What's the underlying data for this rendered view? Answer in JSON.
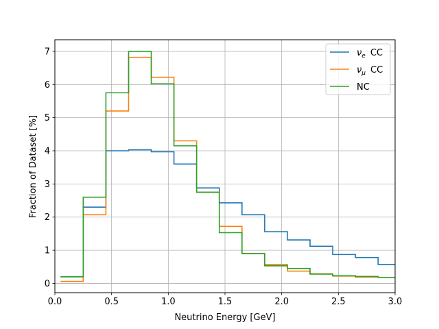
{
  "chart_data": {
    "type": "line",
    "step": true,
    "xlabel": "Neutrino Energy [GeV]",
    "ylabel": "Fraction of Dataset [%]",
    "xlim": [
      0.0,
      3.0
    ],
    "ylim": [
      -0.28,
      7.35
    ],
    "xticks": [
      0.0,
      0.5,
      1.0,
      1.5,
      2.0,
      2.5,
      3.0
    ],
    "xtick_labels": [
      "0.0",
      "0.5",
      "1.0",
      "1.5",
      "2.0",
      "2.5",
      "3.0"
    ],
    "yticks": [
      0,
      1,
      2,
      3,
      4,
      5,
      6,
      7
    ],
    "ytick_labels": [
      "0",
      "1",
      "2",
      "3",
      "4",
      "5",
      "6",
      "7"
    ],
    "grid": true,
    "legend_position": "top-right",
    "bin_edges": [
      0.05,
      0.25,
      0.45,
      0.65,
      0.85,
      1.05,
      1.25,
      1.45,
      1.65,
      1.85,
      2.05,
      2.25,
      2.45,
      2.65,
      2.85,
      3.05
    ],
    "series": [
      {
        "name": "CC",
        "subscript": "e",
        "color": "#1f77b4",
        "values": [
          0.2,
          2.3,
          4.0,
          4.03,
          3.97,
          3.6,
          2.88,
          2.43,
          2.07,
          1.56,
          1.31,
          1.12,
          0.87,
          0.78,
          0.57
        ]
      },
      {
        "name": "CC",
        "subscript": "μ",
        "color": "#ff7f0e",
        "values": [
          0.06,
          2.07,
          5.2,
          6.82,
          6.22,
          4.3,
          2.75,
          1.72,
          0.9,
          0.57,
          0.37,
          0.29,
          0.22,
          0.19,
          0.18
        ]
      },
      {
        "name": "NC",
        "subscript": "",
        "color": "#2ca02c",
        "values": [
          0.2,
          2.6,
          5.75,
          7.0,
          6.02,
          4.15,
          2.75,
          1.53,
          0.9,
          0.53,
          0.45,
          0.28,
          0.23,
          0.21,
          0.18
        ]
      }
    ]
  }
}
